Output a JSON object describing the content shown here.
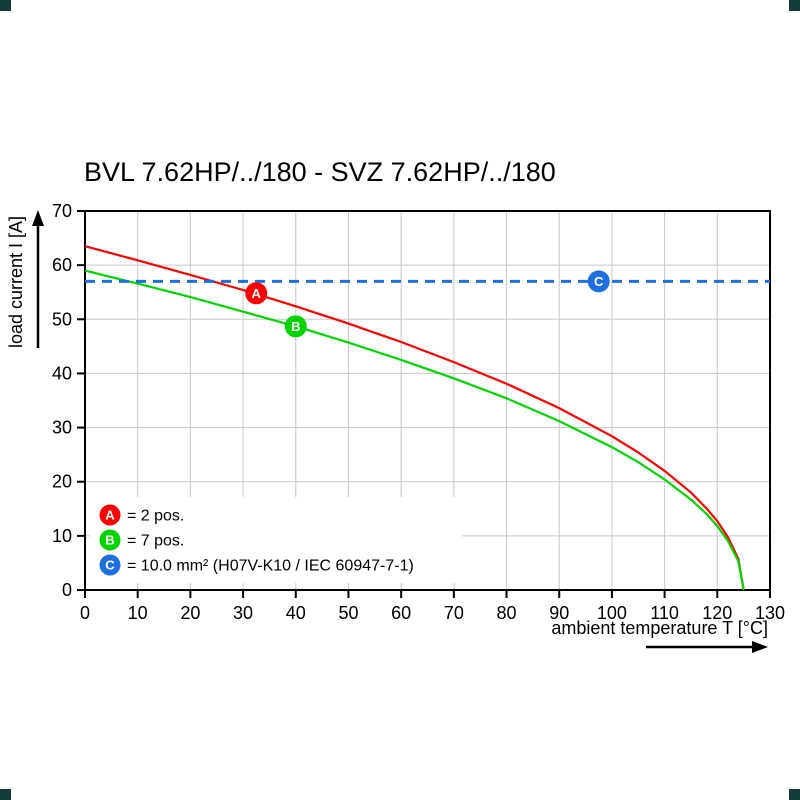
{
  "page": {
    "corner_mark_color": "#123b3b",
    "background": "#ffffff"
  },
  "chart_data": {
    "type": "line",
    "title": "BVL 7.62HP/../180 - SVZ 7.62HP/../180",
    "xlabel": "ambient temperature T [°C]",
    "ylabel": "load current I [A]",
    "xlim": [
      0,
      130
    ],
    "ylim": [
      0,
      70
    ],
    "x_ticks": [
      0,
      10,
      20,
      30,
      40,
      50,
      60,
      70,
      80,
      90,
      100,
      110,
      120,
      130
    ],
    "y_ticks": [
      0,
      10,
      20,
      30,
      40,
      50,
      60,
      70
    ],
    "grid": true,
    "grid_color": "#c8c8c8",
    "frame_color": "#000000",
    "legend_position": "bottom-left-inside",
    "series": [
      {
        "name": "A",
        "label": "= 2 pos.",
        "color": "#fe0000",
        "style": "solid",
        "points": [
          [
            0,
            63.5
          ],
          [
            10,
            60.9
          ],
          [
            20,
            58.2
          ],
          [
            30,
            55.4
          ],
          [
            40,
            52.4
          ],
          [
            50,
            49.2
          ],
          [
            60,
            45.8
          ],
          [
            70,
            42.1
          ],
          [
            80,
            38.1
          ],
          [
            90,
            33.6
          ],
          [
            100,
            28.4
          ],
          [
            105,
            25.4
          ],
          [
            110,
            22.0
          ],
          [
            115,
            18.0
          ],
          [
            118,
            15.0
          ],
          [
            120,
            12.7
          ],
          [
            122,
            9.8
          ],
          [
            124,
            5.7
          ],
          [
            125,
            0
          ]
        ]
      },
      {
        "name": "B",
        "label": "= 7 pos.",
        "color": "#00d300",
        "style": "solid",
        "points": [
          [
            0,
            59
          ],
          [
            10,
            56.6
          ],
          [
            20,
            54.1
          ],
          [
            30,
            51.4
          ],
          [
            40,
            48.7
          ],
          [
            50,
            45.7
          ],
          [
            60,
            42.5
          ],
          [
            70,
            39.1
          ],
          [
            80,
            35.4
          ],
          [
            90,
            31.2
          ],
          [
            100,
            26.4
          ],
          [
            105,
            23.6
          ],
          [
            110,
            20.4
          ],
          [
            115,
            16.7
          ],
          [
            118,
            14.0
          ],
          [
            120,
            11.8
          ],
          [
            122,
            9.1
          ],
          [
            124,
            5.3
          ],
          [
            125,
            0
          ]
        ]
      },
      {
        "name": "C",
        "label": "= 10.0 mm² (H07V-K10 / IEC 60947-7-1)",
        "color": "#1e6fe0",
        "style": "dashed",
        "points": [
          [
            0,
            57
          ],
          [
            130,
            57
          ]
        ]
      }
    ],
    "markers": [
      {
        "name": "A",
        "x": 32.5,
        "y": 54.8,
        "color": "#fe0000"
      },
      {
        "name": "B",
        "x": 40,
        "y": 48.7,
        "color": "#00d300"
      },
      {
        "name": "C",
        "x": 97.5,
        "y": 57,
        "color": "#1e6fe0"
      }
    ]
  }
}
